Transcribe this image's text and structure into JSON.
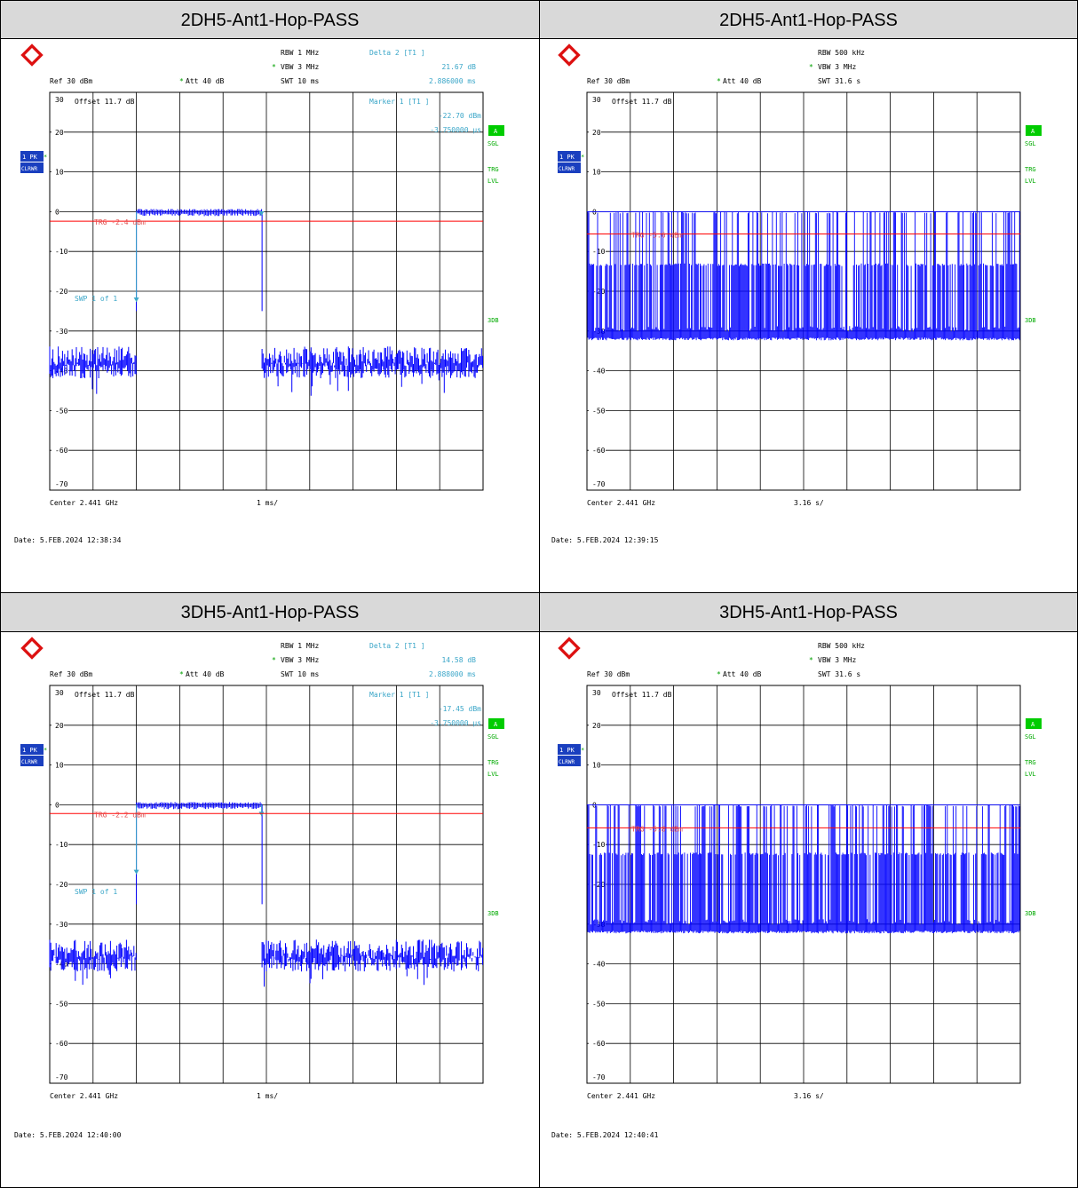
{
  "panels": [
    {
      "title": "2DH5-Ant1-Hop-PASS",
      "date": "Date: 5.FEB.2024  12:38:34",
      "hdr": {
        "rbw": "RBW 1 MHz",
        "vbw": "VBW 3 MHz",
        "swt": "SWT 10 ms",
        "ref": "Ref  30 dBm",
        "att": "Att  40 dB",
        "delta_head": "Delta 2 [T1 ]",
        "delta_val1": "21.67 dB",
        "delta_val2": "2.886000 ms"
      },
      "inner": {
        "offset": "Offset  11.7 dB",
        "marker_head": "Marker 1 [T1 ]",
        "marker_val1": "-22.70 dBm",
        "marker_val2": "-3.750000 µs",
        "trg": "TRG -2.4 dBm",
        "swp": "SWP    1 of    1"
      },
      "footer": {
        "center": "Center 2.441 GHz",
        "span": "1 ms/"
      }
    },
    {
      "title": "2DH5-Ant1-Hop-PASS",
      "date": "Date: 5.FEB.2024  12:39:15",
      "hdr": {
        "rbw": "RBW 500 kHz",
        "vbw": "VBW 3 MHz",
        "swt": "SWT 31.6 s",
        "ref": "Ref  30 dBm",
        "att": "Att  40 dB",
        "delta_head": "",
        "delta_val1": "",
        "delta_val2": ""
      },
      "inner": {
        "offset": "Offset  11.7 dB",
        "marker_head": "",
        "marker_val1": "",
        "marker_val2": "",
        "trg": "TRG -5.6 dBm",
        "swp": ""
      },
      "footer": {
        "center": "Center 2.441 GHz",
        "span": "3.16 s/"
      }
    },
    {
      "title": "3DH5-Ant1-Hop-PASS",
      "date": "Date: 5.FEB.2024  12:40:00",
      "hdr": {
        "rbw": "RBW 1 MHz",
        "vbw": "VBW 3 MHz",
        "swt": "SWT 10 ms",
        "ref": "Ref  30 dBm",
        "att": "Att  40 dB",
        "delta_head": "Delta 2 [T1 ]",
        "delta_val1": "14.58 dB",
        "delta_val2": "2.888000 ms"
      },
      "inner": {
        "offset": "Offset  11.7 dB",
        "marker_head": "Marker 1 [T1 ]",
        "marker_val1": "-17.45 dBm",
        "marker_val2": "-3.750000 µs",
        "trg": "TRG -2.2 dBm",
        "swp": "SWP    1 of    1"
      },
      "footer": {
        "center": "Center 2.441 GHz",
        "span": "1 ms/"
      }
    },
    {
      "title": "3DH5-Ant1-Hop-PASS",
      "date": "Date: 5.FEB.2024  12:40:41",
      "hdr": {
        "rbw": "RBW 500 kHz",
        "vbw": "VBW 3 MHz",
        "swt": "SWT 31.6 s",
        "ref": "Ref  30 dBm",
        "att": "Att  40 dB",
        "delta_head": "",
        "delta_val1": "",
        "delta_val2": ""
      },
      "inner": {
        "offset": "Offset  11.7 dB",
        "marker_head": "",
        "marker_val1": "",
        "marker_val2": "",
        "trg": "TRG -5.8 dBm",
        "swp": ""
      },
      "footer": {
        "center": "Center 2.441 GHz",
        "span": "3.16 s/"
      }
    }
  ],
  "side_labels": {
    "a": "A",
    "sgl": "SGL",
    "trg": "TRG",
    "lvl": "LVL",
    "db3": "3DB",
    "trace1": "1 PK",
    "trace2": "CLRWR"
  },
  "y_ticks": [
    "30",
    "20",
    "10",
    "0",
    "-10",
    "-20",
    "-30",
    "-40",
    "-50",
    "-60",
    "-70"
  ],
  "colors": {
    "trace": "#0000ff",
    "trigger_line": "#ff0000",
    "annotation": "#3aa6c8",
    "status": "#00cc00",
    "trace_badge": "#1a3fbf"
  },
  "chart_data": [
    {
      "type": "line",
      "ylim": [
        -70,
        30
      ],
      "yunit": "dBm",
      "xdiv": "1 ms/",
      "x_range_ms": [
        0,
        10
      ],
      "trigger_dbm": -2.4,
      "series": [
        {
          "segments": [
            {
              "x_ms": [
                0,
                2.0
              ],
              "level_dbm": -37,
              "kind": "noise"
            },
            {
              "x_ms": [
                2.0,
                4.9
              ],
              "level_dbm": 0,
              "kind": "burst"
            },
            {
              "x_ms": [
                4.9,
                10
              ],
              "level_dbm": -37,
              "kind": "noise"
            }
          ]
        }
      ],
      "markers": [
        {
          "name": "1",
          "x_ms": 2.0,
          "y_dbm": -22.7
        },
        {
          "name": "2",
          "x_ms": 4.886,
          "y_dbm": -1.03
        }
      ]
    },
    {
      "type": "line",
      "ylim": [
        -70,
        30
      ],
      "yunit": "dBm",
      "xdiv": "3.16 s/",
      "x_range_s": [
        0,
        31.6
      ],
      "trigger_dbm": -5.6,
      "series": [
        {
          "pattern": "hopping",
          "floor_dbm": -31,
          "mid_dbm": -13,
          "peak_dbm": 0
        }
      ]
    },
    {
      "type": "line",
      "ylim": [
        -70,
        30
      ],
      "yunit": "dBm",
      "xdiv": "1 ms/",
      "x_range_ms": [
        0,
        10
      ],
      "trigger_dbm": -2.2,
      "series": [
        {
          "segments": [
            {
              "x_ms": [
                0,
                2.0
              ],
              "level_dbm": -37,
              "kind": "noise"
            },
            {
              "x_ms": [
                2.0,
                4.9
              ],
              "level_dbm": 0,
              "kind": "burst"
            },
            {
              "x_ms": [
                4.9,
                10
              ],
              "level_dbm": -37,
              "kind": "noise"
            }
          ]
        }
      ],
      "markers": [
        {
          "name": "1",
          "x_ms": 2.0,
          "y_dbm": -17.45
        },
        {
          "name": "2",
          "x_ms": 4.888,
          "y_dbm": -2.87
        }
      ]
    },
    {
      "type": "line",
      "ylim": [
        -70,
        30
      ],
      "yunit": "dBm",
      "xdiv": "3.16 s/",
      "x_range_s": [
        0,
        31.6
      ],
      "trigger_dbm": -5.8,
      "series": [
        {
          "pattern": "hopping",
          "floor_dbm": -31,
          "mid_dbm": -12,
          "peak_dbm": 0
        }
      ]
    }
  ]
}
